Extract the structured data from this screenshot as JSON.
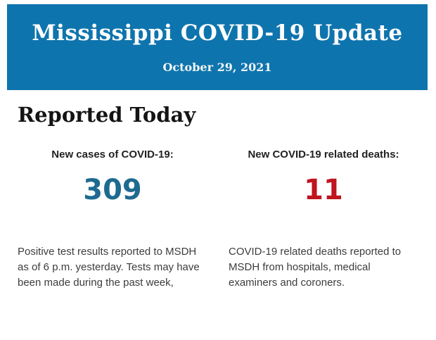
{
  "colors": {
    "header_bg": "#0e74ad",
    "header_text": "#fdfdfd",
    "cases_value": "#1f6a90",
    "deaths_value": "#c0141f"
  },
  "header": {
    "title": "Mississippi COVID-19 Update",
    "date": "October 29, 2021"
  },
  "main": {
    "section_title": "Reported Today",
    "stats": [
      {
        "id": "new-cases",
        "label": "New cases of COVID-19:",
        "value": "309",
        "color": "#1f6a90",
        "description": "Positive test results reported to MSDH as of 6 p.m. yesterday. Tests may have been made during the past week,"
      },
      {
        "id": "new-deaths",
        "label": "New COVID-19 related deaths:",
        "value": "11",
        "color": "#c0141f",
        "description": "COVID-19 related deaths reported to MSDH from hospitals, medical examiners and coroners."
      }
    ]
  }
}
